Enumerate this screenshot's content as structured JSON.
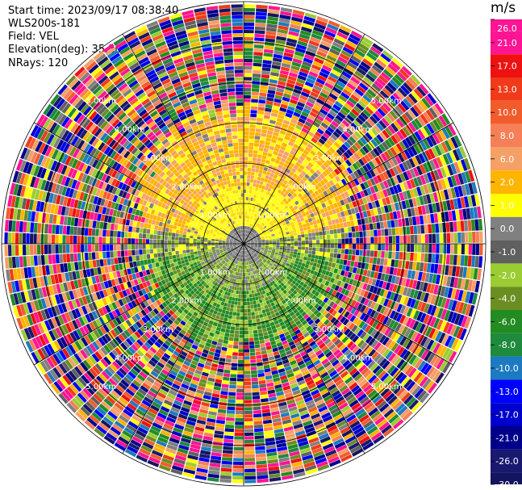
{
  "header": {
    "start_time": "Start time: 2023/09/17 08:38:40",
    "instrument": "WLS200s-181",
    "field": "Field: VEL",
    "elevation": "Elevation(deg): 35.30",
    "nrays": "NRays: 120"
  },
  "chart_data": {
    "type": "heatmap",
    "subtype": "polar-ppi",
    "field": "VEL",
    "nrays": 120,
    "range_unit": "km",
    "range_max_km": 6.0,
    "range_rings_km": [
      1.0,
      2.0,
      3.0,
      4.0,
      5.0
    ],
    "ring_labels": [
      "1.00km",
      "2.00km",
      "3.00km",
      "4.00km",
      "5.00km"
    ],
    "colorbar": {
      "unit": "m/s",
      "tick_labels": [
        "26.0",
        "21.0",
        "17.0",
        "13.0",
        "10.0",
        "8.0",
        "6.0",
        "2.0",
        "1.0",
        "0.0",
        "-1.0",
        "-2.0",
        "-4.0",
        "-6.0",
        "-8.0",
        "-10.0",
        "-13.0",
        "-17.0",
        "-21.0",
        "-26.0",
        "-30.0"
      ],
      "colors": [
        "#ff1493",
        "#ff1493",
        "#ee1111",
        "#f03a1a",
        "#f25c2c",
        "#f58058",
        "#f5a066",
        "#ffb400",
        "#ffff00",
        "#808080",
        "#606060",
        "#9acd32",
        "#6b8e23",
        "#228b22",
        "#1e8a3c",
        "#1c7ac0",
        "#0000ff",
        "#0000cd",
        "#00008b",
        "#191970",
        "#141460"
      ]
    },
    "pattern": {
      "near_field_north": "positive velocities (yellow-orange)",
      "near_field_south": "negative velocities (green)",
      "center": "near-zero (grey)",
      "far_field": "noise (all colors)"
    }
  }
}
